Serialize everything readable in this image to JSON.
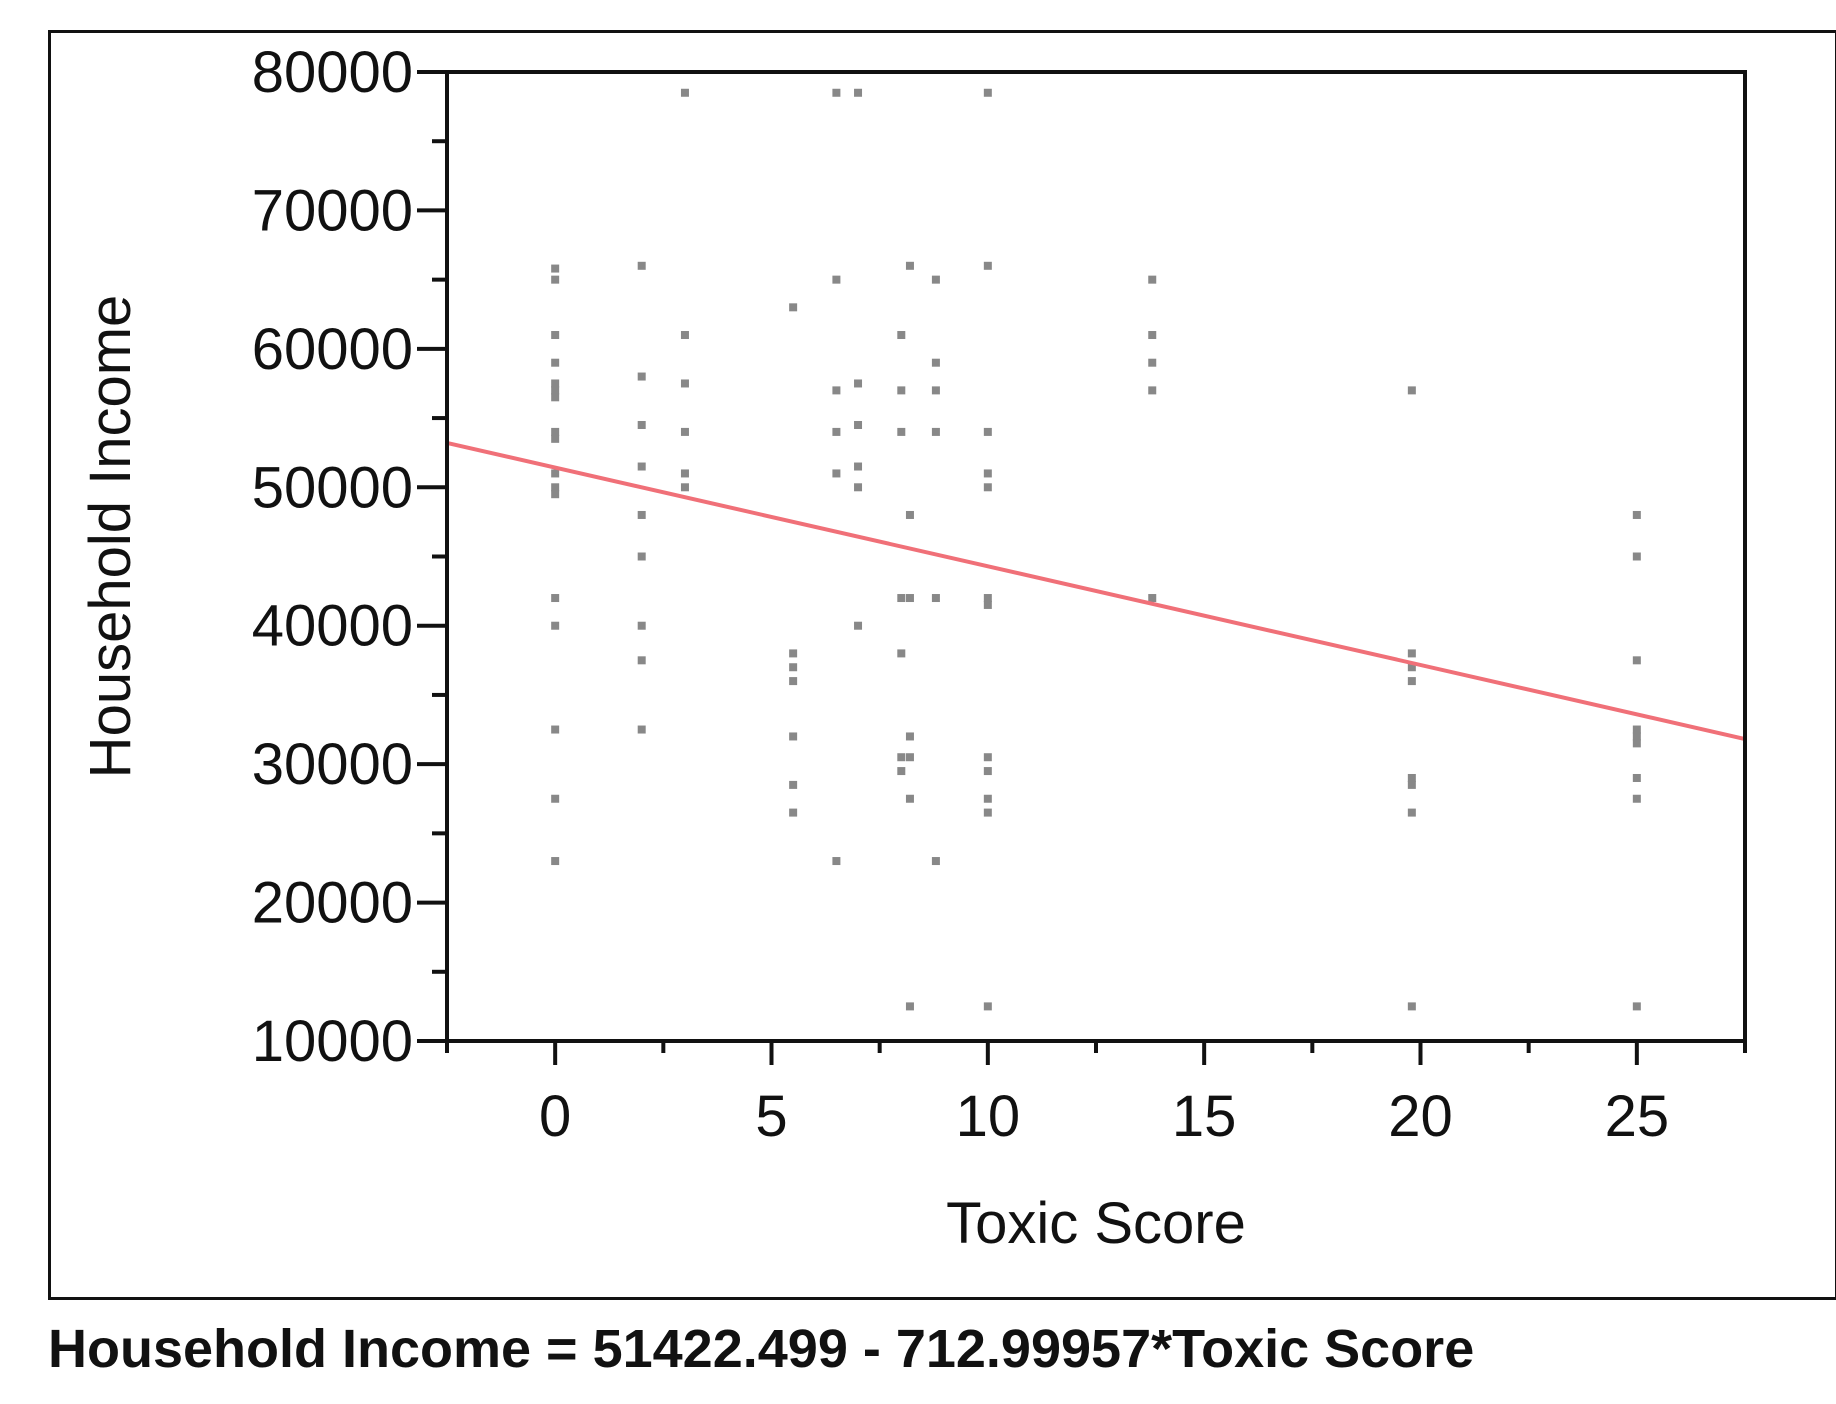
{
  "chart_data": {
    "type": "scatter",
    "xlabel": "Toxic Score",
    "ylabel": "Household Income",
    "xlim": [
      -2.5,
      27.5
    ],
    "ylim": [
      10000,
      80000
    ],
    "xticks": [
      0,
      5,
      10,
      15,
      20,
      25
    ],
    "yticks": [
      10000,
      20000,
      30000,
      40000,
      50000,
      60000,
      70000,
      80000
    ],
    "grid": false,
    "equation": "Household Income = 51422.499 - 712.99957*Toxic Score",
    "fit": {
      "intercept": 51422.499,
      "slope": -712.99957
    },
    "colors": {
      "points": "#888888",
      "fit_line": "#f07078",
      "axis": "#111111"
    },
    "points": [
      [
        0,
        65800
      ],
      [
        0,
        65000
      ],
      [
        0,
        61000
      ],
      [
        0,
        59000
      ],
      [
        0,
        57500
      ],
      [
        0,
        57000
      ],
      [
        0,
        56500
      ],
      [
        0,
        54000
      ],
      [
        0,
        53500
      ],
      [
        0,
        51000
      ],
      [
        0,
        50000
      ],
      [
        0,
        49500
      ],
      [
        0,
        42000
      ],
      [
        0,
        40000
      ],
      [
        0,
        32500
      ],
      [
        0,
        27500
      ],
      [
        0,
        23000
      ],
      [
        2,
        66000
      ],
      [
        2,
        58000
      ],
      [
        2,
        54500
      ],
      [
        2,
        51500
      ],
      [
        2,
        48000
      ],
      [
        2,
        45000
      ],
      [
        2,
        40000
      ],
      [
        2,
        37500
      ],
      [
        2,
        32500
      ],
      [
        3,
        78500
      ],
      [
        3,
        61000
      ],
      [
        3,
        57500
      ],
      [
        3,
        54000
      ],
      [
        3,
        51000
      ],
      [
        3,
        50000
      ],
      [
        5.5,
        63000
      ],
      [
        5.5,
        38000
      ],
      [
        5.5,
        37000
      ],
      [
        5.5,
        36000
      ],
      [
        5.5,
        32000
      ],
      [
        5.5,
        28500
      ],
      [
        5.5,
        26500
      ],
      [
        6.5,
        78500
      ],
      [
        6.5,
        65000
      ],
      [
        6.5,
        57000
      ],
      [
        6.5,
        54000
      ],
      [
        6.5,
        51000
      ],
      [
        6.5,
        23000
      ],
      [
        7,
        78500
      ],
      [
        7,
        57500
      ],
      [
        7,
        54500
      ],
      [
        7,
        51500
      ],
      [
        7,
        50000
      ],
      [
        7,
        40000
      ],
      [
        8,
        61000
      ],
      [
        8,
        57000
      ],
      [
        8,
        54000
      ],
      [
        8,
        42000
      ],
      [
        8,
        38000
      ],
      [
        8,
        30500
      ],
      [
        8,
        29500
      ],
      [
        8.2,
        66000
      ],
      [
        8.2,
        48000
      ],
      [
        8.2,
        42000
      ],
      [
        8.2,
        32000
      ],
      [
        8.2,
        30500
      ],
      [
        8.2,
        27500
      ],
      [
        8.2,
        12500
      ],
      [
        8.8,
        65000
      ],
      [
        8.8,
        59000
      ],
      [
        8.8,
        57000
      ],
      [
        8.8,
        54000
      ],
      [
        8.8,
        42000
      ],
      [
        8.8,
        23000
      ],
      [
        10,
        78500
      ],
      [
        10,
        66000
      ],
      [
        10,
        54000
      ],
      [
        10,
        51000
      ],
      [
        10,
        50000
      ],
      [
        10,
        42000
      ],
      [
        10,
        41500
      ],
      [
        10,
        30500
      ],
      [
        10,
        29500
      ],
      [
        10,
        27500
      ],
      [
        10,
        26500
      ],
      [
        10,
        12500
      ],
      [
        13.8,
        65000
      ],
      [
        13.8,
        61000
      ],
      [
        13.8,
        59000
      ],
      [
        13.8,
        57000
      ],
      [
        13.8,
        42000
      ],
      [
        19.8,
        57000
      ],
      [
        19.8,
        38000
      ],
      [
        19.8,
        37000
      ],
      [
        19.8,
        36000
      ],
      [
        19.8,
        29000
      ],
      [
        19.8,
        28500
      ],
      [
        19.8,
        26500
      ],
      [
        19.8,
        12500
      ],
      [
        25,
        48000
      ],
      [
        25,
        45000
      ],
      [
        25,
        37500
      ],
      [
        25,
        32500
      ],
      [
        25,
        32000
      ],
      [
        25,
        31500
      ],
      [
        25,
        29000
      ],
      [
        25,
        27500
      ],
      [
        25,
        12500
      ]
    ]
  }
}
